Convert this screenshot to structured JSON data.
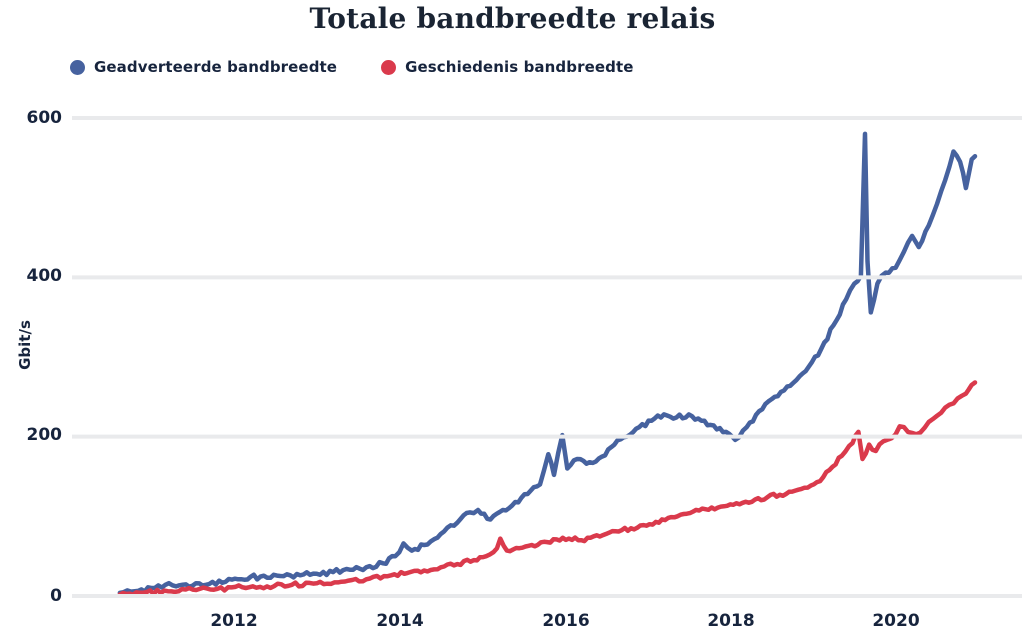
{
  "page": {
    "background": "#ffffff"
  },
  "chart": {
    "title": "Totale bandbreedte relais",
    "ylabel": "Gbit/s",
    "text_color": "#17243D",
    "grid_color": "#E9EAEC"
  },
  "chart_data": {
    "type": "line",
    "title": "Totale bandbreedte relais",
    "xlabel": "",
    "ylabel": "Gbit/s",
    "x_unit": "year (decimal)",
    "y_unit": "Gbit/s",
    "xlim": [
      2010.6,
      2021.05
    ],
    "ylim": [
      0,
      620
    ],
    "yticks": [
      600,
      400,
      200,
      0
    ],
    "xticks": [
      2012,
      2014,
      2016,
      2018,
      2020
    ],
    "grid": "horizontal-white-over-series",
    "legend_position": "top-left",
    "series": [
      {
        "name": "Geadverteerde bandbreedte",
        "color": "#46629F",
        "points": [
          [
            2010.62,
            4
          ],
          [
            2010.8,
            6
          ],
          [
            2011.0,
            10
          ],
          [
            2011.17,
            14
          ],
          [
            2011.3,
            12
          ],
          [
            2011.5,
            13
          ],
          [
            2011.7,
            15
          ],
          [
            2011.9,
            18
          ],
          [
            2012.05,
            21
          ],
          [
            2012.2,
            24
          ],
          [
            2012.4,
            23
          ],
          [
            2012.6,
            25
          ],
          [
            2012.8,
            26
          ],
          [
            2013.0,
            28
          ],
          [
            2013.2,
            30
          ],
          [
            2013.4,
            33
          ],
          [
            2013.6,
            36
          ],
          [
            2013.8,
            41
          ],
          [
            2013.95,
            50
          ],
          [
            2014.05,
            66
          ],
          [
            2014.15,
            57
          ],
          [
            2014.3,
            64
          ],
          [
            2014.5,
            78
          ],
          [
            2014.7,
            92
          ],
          [
            2014.85,
            105
          ],
          [
            2014.95,
            108
          ],
          [
            2015.1,
            96
          ],
          [
            2015.25,
            108
          ],
          [
            2015.4,
            118
          ],
          [
            2015.55,
            128
          ],
          [
            2015.7,
            140
          ],
          [
            2015.8,
            178
          ],
          [
            2015.87,
            152
          ],
          [
            2015.97,
            202
          ],
          [
            2016.03,
            160
          ],
          [
            2016.15,
            172
          ],
          [
            2016.3,
            168
          ],
          [
            2016.45,
            175
          ],
          [
            2016.6,
            190
          ],
          [
            2016.75,
            200
          ],
          [
            2016.9,
            212
          ],
          [
            2017.05,
            220
          ],
          [
            2017.2,
            228
          ],
          [
            2017.35,
            224
          ],
          [
            2017.5,
            228
          ],
          [
            2017.65,
            220
          ],
          [
            2017.8,
            214
          ],
          [
            2017.95,
            206
          ],
          [
            2018.06,
            196
          ],
          [
            2018.2,
            212
          ],
          [
            2018.35,
            232
          ],
          [
            2018.5,
            247
          ],
          [
            2018.65,
            258
          ],
          [
            2018.8,
            271
          ],
          [
            2018.95,
            288
          ],
          [
            2019.1,
            310
          ],
          [
            2019.25,
            340
          ],
          [
            2019.4,
            372
          ],
          [
            2019.5,
            392
          ],
          [
            2019.58,
            402
          ],
          [
            2019.63,
            580
          ],
          [
            2019.66,
            420
          ],
          [
            2019.7,
            356
          ],
          [
            2019.78,
            392
          ],
          [
            2019.88,
            406
          ],
          [
            2020.0,
            412
          ],
          [
            2020.1,
            432
          ],
          [
            2020.2,
            452
          ],
          [
            2020.28,
            438
          ],
          [
            2020.4,
            465
          ],
          [
            2020.5,
            492
          ],
          [
            2020.6,
            522
          ],
          [
            2020.7,
            558
          ],
          [
            2020.78,
            545
          ],
          [
            2020.85,
            512
          ],
          [
            2020.92,
            548
          ],
          [
            2020.96,
            552
          ]
        ]
      },
      {
        "name": "Geschiedenis bandbreedte",
        "color": "#DA3A4C",
        "points": [
          [
            2010.62,
            2
          ],
          [
            2010.9,
            4
          ],
          [
            2011.2,
            6
          ],
          [
            2011.5,
            8
          ],
          [
            2011.8,
            9
          ],
          [
            2012.1,
            11
          ],
          [
            2012.4,
            12
          ],
          [
            2012.7,
            14
          ],
          [
            2013.0,
            16
          ],
          [
            2013.3,
            18
          ],
          [
            2013.6,
            21
          ],
          [
            2013.9,
            26
          ],
          [
            2014.1,
            29
          ],
          [
            2014.3,
            32
          ],
          [
            2014.5,
            36
          ],
          [
            2014.7,
            40
          ],
          [
            2014.9,
            45
          ],
          [
            2015.05,
            50
          ],
          [
            2015.18,
            60
          ],
          [
            2015.22,
            72
          ],
          [
            2015.3,
            57
          ],
          [
            2015.45,
            60
          ],
          [
            2015.6,
            64
          ],
          [
            2015.75,
            68
          ],
          [
            2015.9,
            71
          ],
          [
            2016.05,
            72
          ],
          [
            2016.2,
            70
          ],
          [
            2016.35,
            75
          ],
          [
            2016.5,
            78
          ],
          [
            2016.65,
            81
          ],
          [
            2016.8,
            85
          ],
          [
            2016.95,
            89
          ],
          [
            2017.1,
            93
          ],
          [
            2017.25,
            98
          ],
          [
            2017.4,
            102
          ],
          [
            2017.55,
            106
          ],
          [
            2017.7,
            109
          ],
          [
            2017.85,
            111
          ],
          [
            2018.0,
            115
          ],
          [
            2018.15,
            117
          ],
          [
            2018.3,
            121
          ],
          [
            2018.45,
            124
          ],
          [
            2018.6,
            127
          ],
          [
            2018.75,
            131
          ],
          [
            2018.9,
            136
          ],
          [
            2019.05,
            143
          ],
          [
            2019.2,
            158
          ],
          [
            2019.35,
            176
          ],
          [
            2019.48,
            192
          ],
          [
            2019.55,
            206
          ],
          [
            2019.6,
            172
          ],
          [
            2019.68,
            190
          ],
          [
            2019.76,
            182
          ],
          [
            2019.85,
            194
          ],
          [
            2019.95,
            198
          ],
          [
            2020.05,
            213
          ],
          [
            2020.15,
            206
          ],
          [
            2020.25,
            203
          ],
          [
            2020.35,
            211
          ],
          [
            2020.45,
            222
          ],
          [
            2020.55,
            230
          ],
          [
            2020.65,
            240
          ],
          [
            2020.75,
            248
          ],
          [
            2020.85,
            254
          ],
          [
            2020.92,
            265
          ],
          [
            2020.96,
            268
          ]
        ]
      }
    ]
  },
  "axes": {
    "ytick_labels": [
      "600",
      "400",
      "200",
      "0"
    ],
    "xtick_labels": [
      "2012",
      "2014",
      "2016",
      "2018",
      "2020"
    ]
  }
}
